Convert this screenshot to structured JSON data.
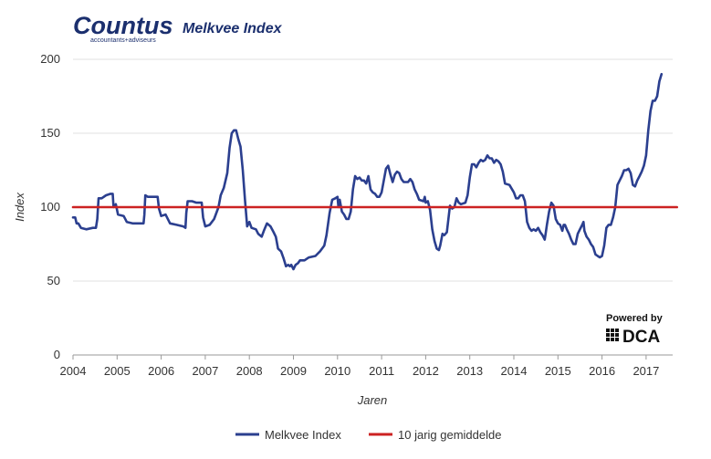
{
  "brand": {
    "name": "Countus",
    "tagline": "accountants+adviseurs",
    "color": "#1b2f6e"
  },
  "powered_by": {
    "label": "Powered by",
    "brand": "DCA"
  },
  "chart_data": {
    "type": "line",
    "title": "Melkvee Index",
    "xlabel": "Jaren",
    "ylabel": "Index",
    "xlim": [
      2004,
      2017.7
    ],
    "ylim": [
      0,
      200
    ],
    "yticks": [
      0,
      50,
      100,
      150,
      200
    ],
    "xticks": [
      "2004",
      "2005",
      "2006",
      "2007",
      "2008",
      "2009",
      "2010",
      "2011",
      "2012",
      "2013",
      "2014",
      "2015",
      "2016",
      "2017"
    ],
    "grid": true,
    "legend_position": "bottom",
    "series": [
      {
        "name": "Melkvee Index",
        "color": "#2b3f8f",
        "points": [
          [
            2004.0,
            93
          ],
          [
            2004.05,
            93
          ],
          [
            2004.08,
            89
          ],
          [
            2004.12,
            89
          ],
          [
            2004.18,
            86
          ],
          [
            2004.3,
            85
          ],
          [
            2004.45,
            86
          ],
          [
            2004.52,
            86
          ],
          [
            2004.55,
            92
          ],
          [
            2004.58,
            106
          ],
          [
            2004.65,
            106
          ],
          [
            2004.75,
            108
          ],
          [
            2004.85,
            109
          ],
          [
            2004.9,
            109
          ],
          [
            2004.92,
            100
          ],
          [
            2004.97,
            102
          ],
          [
            2005.02,
            95
          ],
          [
            2005.15,
            94
          ],
          [
            2005.22,
            90
          ],
          [
            2005.35,
            89
          ],
          [
            2005.5,
            89
          ],
          [
            2005.6,
            89
          ],
          [
            2005.62,
            95
          ],
          [
            2005.64,
            108
          ],
          [
            2005.7,
            107
          ],
          [
            2005.8,
            107
          ],
          [
            2005.92,
            107
          ],
          [
            2005.95,
            99
          ],
          [
            2006.0,
            94
          ],
          [
            2006.1,
            95
          ],
          [
            2006.2,
            89
          ],
          [
            2006.35,
            88
          ],
          [
            2006.5,
            87
          ],
          [
            2006.55,
            86
          ],
          [
            2006.57,
            96
          ],
          [
            2006.6,
            104
          ],
          [
            2006.7,
            104
          ],
          [
            2006.8,
            103
          ],
          [
            2006.92,
            103
          ],
          [
            2006.95,
            93
          ],
          [
            2007.0,
            87
          ],
          [
            2007.1,
            88
          ],
          [
            2007.2,
            92
          ],
          [
            2007.3,
            100
          ],
          [
            2007.35,
            108
          ],
          [
            2007.42,
            113
          ],
          [
            2007.5,
            123
          ],
          [
            2007.55,
            140
          ],
          [
            2007.6,
            150
          ],
          [
            2007.65,
            152
          ],
          [
            2007.7,
            152
          ],
          [
            2007.75,
            146
          ],
          [
            2007.8,
            141
          ],
          [
            2007.85,
            125
          ],
          [
            2007.9,
            105
          ],
          [
            2007.95,
            87
          ],
          [
            2008.0,
            90
          ],
          [
            2008.05,
            86
          ],
          [
            2008.15,
            85
          ],
          [
            2008.2,
            82
          ],
          [
            2008.28,
            80
          ],
          [
            2008.33,
            84
          ],
          [
            2008.4,
            89
          ],
          [
            2008.48,
            87
          ],
          [
            2008.55,
            83
          ],
          [
            2008.6,
            80
          ],
          [
            2008.65,
            72
          ],
          [
            2008.72,
            70
          ],
          [
            2008.78,
            65
          ],
          [
            2008.83,
            60
          ],
          [
            2008.88,
            61
          ],
          [
            2008.92,
            60
          ],
          [
            2008.95,
            61
          ],
          [
            2009.0,
            58
          ],
          [
            2009.05,
            61
          ],
          [
            2009.1,
            62
          ],
          [
            2009.15,
            64
          ],
          [
            2009.25,
            64
          ],
          [
            2009.35,
            66
          ],
          [
            2009.5,
            67
          ],
          [
            2009.6,
            70
          ],
          [
            2009.7,
            74
          ],
          [
            2009.75,
            81
          ],
          [
            2009.82,
            96
          ],
          [
            2009.88,
            105
          ],
          [
            2009.95,
            106
          ],
          [
            2010.0,
            107
          ],
          [
            2010.02,
            100
          ],
          [
            2010.05,
            105
          ],
          [
            2010.1,
            97
          ],
          [
            2010.15,
            95
          ],
          [
            2010.2,
            92
          ],
          [
            2010.25,
            92
          ],
          [
            2010.3,
            97
          ],
          [
            2010.35,
            112
          ],
          [
            2010.4,
            121
          ],
          [
            2010.45,
            119
          ],
          [
            2010.5,
            120
          ],
          [
            2010.55,
            118
          ],
          [
            2010.6,
            118
          ],
          [
            2010.65,
            116
          ],
          [
            2010.7,
            121
          ],
          [
            2010.75,
            112
          ],
          [
            2010.8,
            110
          ],
          [
            2010.85,
            109
          ],
          [
            2010.9,
            107
          ],
          [
            2010.95,
            107
          ],
          [
            2011.0,
            110
          ],
          [
            2011.05,
            118
          ],
          [
            2011.1,
            126
          ],
          [
            2011.15,
            128
          ],
          [
            2011.2,
            122
          ],
          [
            2011.25,
            117
          ],
          [
            2011.3,
            122
          ],
          [
            2011.35,
            124
          ],
          [
            2011.4,
            123
          ],
          [
            2011.45,
            119
          ],
          [
            2011.5,
            117
          ],
          [
            2011.6,
            117
          ],
          [
            2011.65,
            119
          ],
          [
            2011.7,
            117
          ],
          [
            2011.75,
            112
          ],
          [
            2011.8,
            109
          ],
          [
            2011.85,
            105
          ],
          [
            2011.95,
            104
          ],
          [
            2011.98,
            107
          ],
          [
            2012.0,
            103
          ],
          [
            2012.05,
            104
          ],
          [
            2012.1,
            98
          ],
          [
            2012.15,
            85
          ],
          [
            2012.2,
            77
          ],
          [
            2012.25,
            72
          ],
          [
            2012.3,
            71
          ],
          [
            2012.33,
            74
          ],
          [
            2012.38,
            82
          ],
          [
            2012.42,
            81
          ],
          [
            2012.48,
            83
          ],
          [
            2012.55,
            101
          ],
          [
            2012.6,
            99
          ],
          [
            2012.65,
            100
          ],
          [
            2012.7,
            106
          ],
          [
            2012.75,
            103
          ],
          [
            2012.8,
            102
          ],
          [
            2012.9,
            103
          ],
          [
            2012.95,
            108
          ],
          [
            2013.0,
            120
          ],
          [
            2013.05,
            129
          ],
          [
            2013.1,
            129
          ],
          [
            2013.15,
            127
          ],
          [
            2013.2,
            130
          ],
          [
            2013.25,
            132
          ],
          [
            2013.3,
            131
          ],
          [
            2013.35,
            132
          ],
          [
            2013.4,
            135
          ],
          [
            2013.45,
            133
          ],
          [
            2013.5,
            133
          ],
          [
            2013.55,
            130
          ],
          [
            2013.6,
            132
          ],
          [
            2013.65,
            131
          ],
          [
            2013.7,
            129
          ],
          [
            2013.75,
            124
          ],
          [
            2013.8,
            116
          ],
          [
            2013.9,
            115
          ],
          [
            2014.0,
            110
          ],
          [
            2014.05,
            106
          ],
          [
            2014.1,
            106
          ],
          [
            2014.15,
            108
          ],
          [
            2014.2,
            108
          ],
          [
            2014.25,
            104
          ],
          [
            2014.3,
            90
          ],
          [
            2014.35,
            86
          ],
          [
            2014.4,
            84
          ],
          [
            2014.45,
            85
          ],
          [
            2014.5,
            84
          ],
          [
            2014.55,
            86
          ],
          [
            2014.6,
            83
          ],
          [
            2014.65,
            81
          ],
          [
            2014.7,
            78
          ],
          [
            2014.72,
            82
          ],
          [
            2014.75,
            88
          ],
          [
            2014.8,
            97
          ],
          [
            2014.85,
            103
          ],
          [
            2014.9,
            101
          ],
          [
            2014.95,
            92
          ],
          [
            2015.0,
            89
          ],
          [
            2015.05,
            88
          ],
          [
            2015.1,
            84
          ],
          [
            2015.13,
            88
          ],
          [
            2015.16,
            88
          ],
          [
            2015.2,
            85
          ],
          [
            2015.25,
            82
          ],
          [
            2015.3,
            78
          ],
          [
            2015.35,
            75
          ],
          [
            2015.4,
            75
          ],
          [
            2015.45,
            82
          ],
          [
            2015.5,
            85
          ],
          [
            2015.55,
            88
          ],
          [
            2015.58,
            90
          ],
          [
            2015.6,
            84
          ],
          [
            2015.65,
            80
          ],
          [
            2015.7,
            78
          ],
          [
            2015.75,
            75
          ],
          [
            2015.8,
            73
          ],
          [
            2015.85,
            68
          ],
          [
            2015.9,
            67
          ],
          [
            2015.95,
            66
          ],
          [
            2016.0,
            67
          ],
          [
            2016.05,
            74
          ],
          [
            2016.1,
            86
          ],
          [
            2016.15,
            88
          ],
          [
            2016.2,
            88
          ],
          [
            2016.25,
            93
          ],
          [
            2016.3,
            100
          ],
          [
            2016.35,
            115
          ],
          [
            2016.4,
            118
          ],
          [
            2016.45,
            121
          ],
          [
            2016.5,
            125
          ],
          [
            2016.55,
            125
          ],
          [
            2016.6,
            126
          ],
          [
            2016.65,
            123
          ],
          [
            2016.7,
            115
          ],
          [
            2016.75,
            114
          ],
          [
            2016.8,
            118
          ],
          [
            2016.85,
            121
          ],
          [
            2016.9,
            124
          ],
          [
            2016.95,
            128
          ],
          [
            2017.0,
            135
          ],
          [
            2017.05,
            152
          ],
          [
            2017.1,
            165
          ],
          [
            2017.15,
            172
          ],
          [
            2017.2,
            172
          ],
          [
            2017.25,
            175
          ],
          [
            2017.3,
            185
          ],
          [
            2017.35,
            190
          ]
        ]
      },
      {
        "name": "10 jarig gemiddelde",
        "color": "#cc2222",
        "points": [
          [
            2004.0,
            100
          ],
          [
            2017.7,
            100
          ]
        ]
      }
    ]
  }
}
